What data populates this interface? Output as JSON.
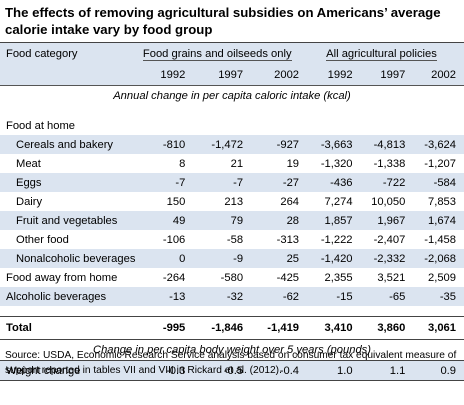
{
  "title": "The effects of removing agricultural subsidies on Americans’ average calorie intake vary by food group",
  "header": {
    "category_label": "Food category",
    "group1": "Food grains and oilseeds only",
    "group2": "All agricultural policies",
    "years": [
      "1992",
      "1997",
      "2002",
      "1992",
      "1997",
      "2002"
    ]
  },
  "section1_caption": "Annual change in per capita caloric intake (kcal)",
  "food_at_home_label": "Food at home",
  "rows": [
    {
      "label": "Cereals and bakery",
      "values": [
        "-810",
        "-1,472",
        "-927",
        "-3,663",
        "-4,813",
        "-3,624"
      ]
    },
    {
      "label": "Meat",
      "values": [
        "8",
        "21",
        "19",
        "-1,320",
        "-1,338",
        "-1,207"
      ]
    },
    {
      "label": "Eggs",
      "values": [
        "-7",
        "-7",
        "-27",
        "-436",
        "-722",
        "-584"
      ]
    },
    {
      "label": "Dairy",
      "values": [
        "150",
        "213",
        "264",
        "7,274",
        "10,050",
        "7,853"
      ]
    },
    {
      "label": "Fruit and vegetables",
      "values": [
        "49",
        "79",
        "28",
        "1,857",
        "1,967",
        "1,674"
      ]
    },
    {
      "label": "Other food",
      "values": [
        "-106",
        "-58",
        "-313",
        "-1,222",
        "-2,407",
        "-1,458"
      ]
    },
    {
      "label": "Nonalcoholic beverages",
      "values": [
        "0",
        "-9",
        "25",
        "-1,420",
        "-2,332",
        "-2,068"
      ]
    }
  ],
  "rows_outer": [
    {
      "label": "Food away from home",
      "values": [
        "-264",
        "-580",
        "-425",
        "2,355",
        "3,521",
        "2,509"
      ]
    },
    {
      "label": "Alcoholic beverages",
      "values": [
        "-13",
        "-32",
        "-62",
        "-15",
        "-65",
        "-35"
      ]
    }
  ],
  "total": {
    "label": "Total",
    "values": [
      "-995",
      "-1,846",
      "-1,419",
      "3,410",
      "3,860",
      "3,061"
    ]
  },
  "section2_caption": "Change in per capita body weight over 5 years (pounds)",
  "weight": {
    "label": "Weight change",
    "values": [
      "-0.3",
      "-0.5",
      "-0.4",
      "1.0",
      "1.1",
      "0.9"
    ]
  },
  "source": "Source: USDA, Economic Research Service analysis based on consumer tax equivalent measure of support reported in tables VII and VIII in Rickard et al. (2012)."
}
